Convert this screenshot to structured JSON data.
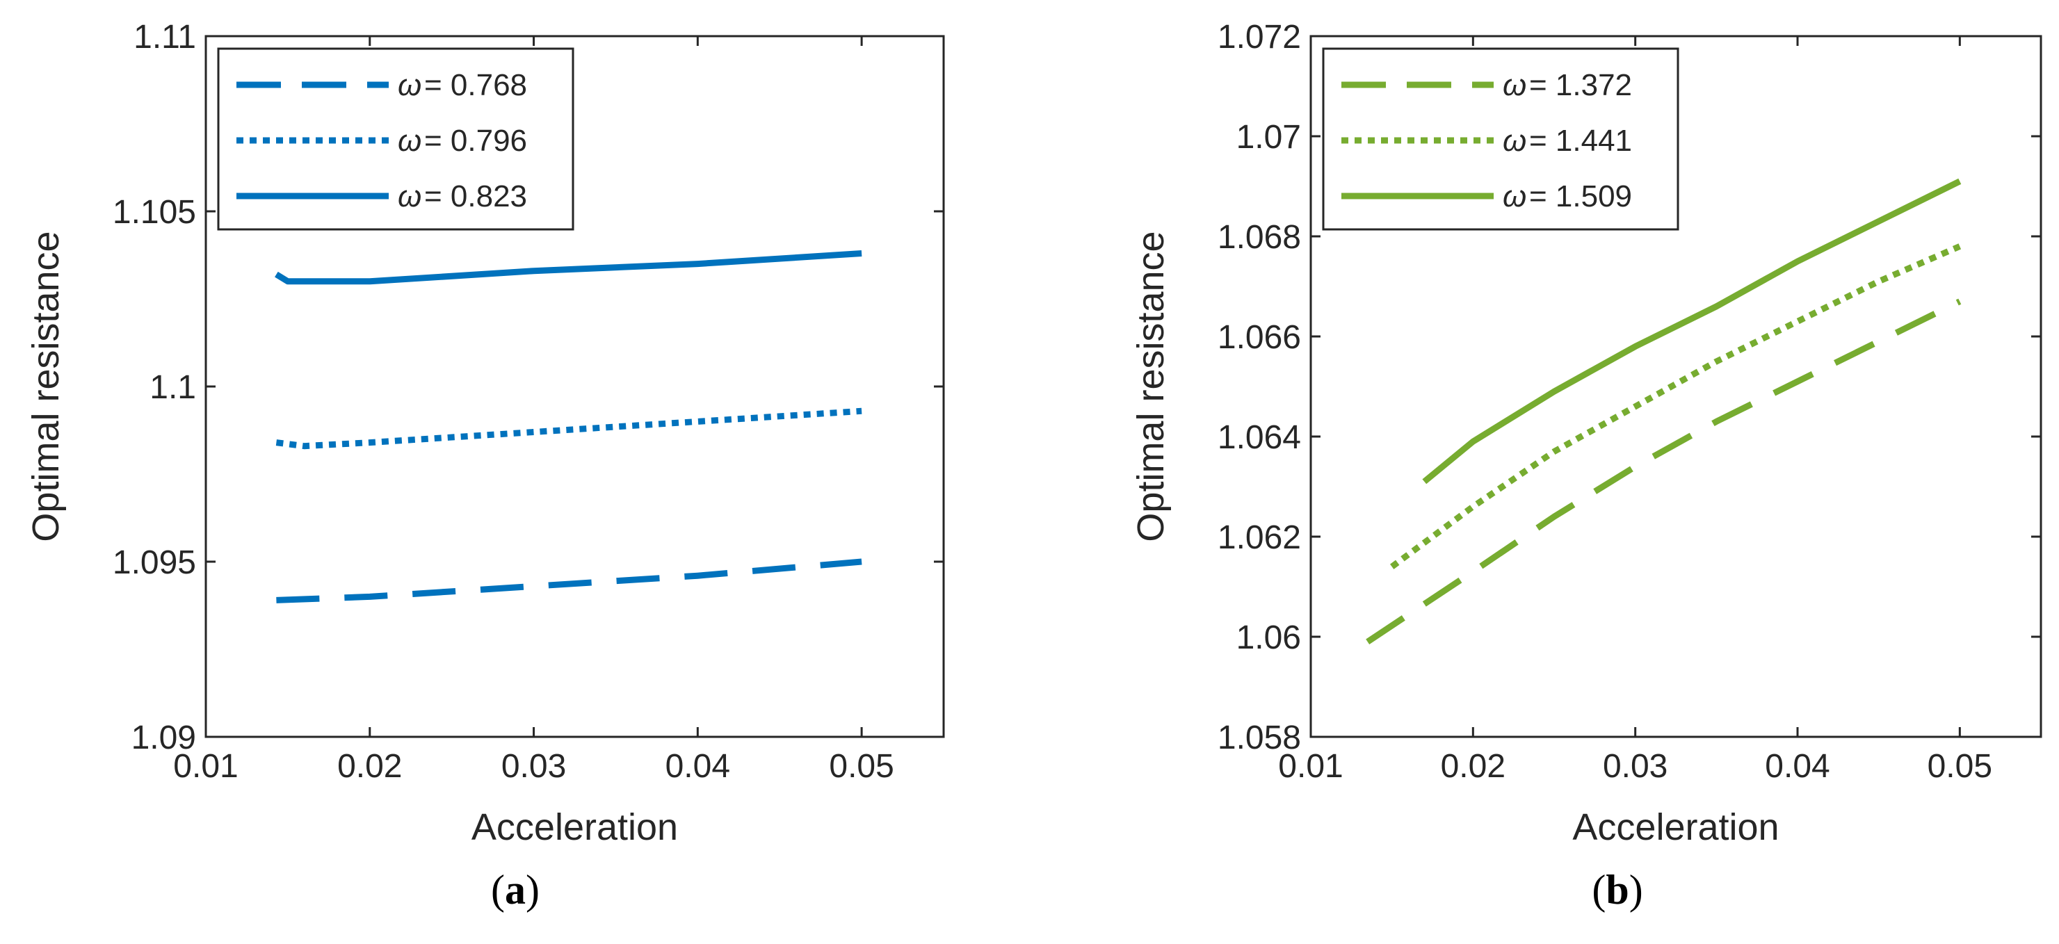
{
  "chart_data": [
    {
      "type": "line",
      "panel_label": "a",
      "xlabel": "Acceleration",
      "ylabel": "Optimal resistance",
      "xlim": [
        0.01,
        0.055
      ],
      "ylim": [
        1.09,
        1.11
      ],
      "xticks": [
        0.01,
        0.02,
        0.03,
        0.04,
        0.05
      ],
      "xtick_labels": [
        "0.01",
        "0.02",
        "0.03",
        "0.04",
        "0.05"
      ],
      "yticks": [
        1.09,
        1.095,
        1.1,
        1.105,
        1.11
      ],
      "ytick_labels": [
        "1.09",
        "1.095",
        "1.1",
        "1.105",
        "1.11"
      ],
      "color": "#0072BD",
      "legend_position": "top-left",
      "legend_prefix": "ω",
      "series": [
        {
          "name": "ω = 0.768",
          "value_label": "= 0.768",
          "style": "dashed",
          "x": [
            0.0143,
            0.02,
            0.03,
            0.04,
            0.05
          ],
          "y": [
            1.0939,
            1.094,
            1.0943,
            1.0946,
            1.095
          ]
        },
        {
          "name": "ω = 0.796",
          "value_label": "= 0.796",
          "style": "dotted",
          "x": [
            0.0143,
            0.016,
            0.02,
            0.03,
            0.04,
            0.05
          ],
          "y": [
            1.0984,
            1.0983,
            1.0984,
            1.0987,
            1.099,
            1.0993
          ]
        },
        {
          "name": "ω = 0.823",
          "value_label": "= 0.823",
          "style": "solid",
          "x": [
            0.0143,
            0.015,
            0.017,
            0.02,
            0.03,
            0.04,
            0.05
          ],
          "y": [
            1.1032,
            1.103,
            1.103,
            1.103,
            1.1033,
            1.1035,
            1.1038
          ]
        }
      ]
    },
    {
      "type": "line",
      "panel_label": "b",
      "xlabel": "Acceleration",
      "ylabel": "Optimal resistance",
      "xlim": [
        0.01,
        0.055
      ],
      "ylim": [
        1.058,
        1.072
      ],
      "xticks": [
        0.01,
        0.02,
        0.03,
        0.04,
        0.05
      ],
      "xtick_labels": [
        "0.01",
        "0.02",
        "0.03",
        "0.04",
        "0.05"
      ],
      "yticks": [
        1.058,
        1.06,
        1.062,
        1.064,
        1.066,
        1.068,
        1.07,
        1.072
      ],
      "ytick_labels": [
        "1.058",
        "1.06",
        "1.062",
        "1.064",
        "1.066",
        "1.068",
        "1.07",
        "1.072"
      ],
      "color": "#77AC30",
      "legend_position": "top-left",
      "legend_prefix": "ω",
      "series": [
        {
          "name": "ω = 1.372",
          "value_label": "= 1.372",
          "style": "dashed",
          "x": [
            0.0135,
            0.02,
            0.025,
            0.03,
            0.035,
            0.04,
            0.045,
            0.05
          ],
          "y": [
            1.0599,
            1.0613,
            1.0624,
            1.0634,
            1.0643,
            1.0651,
            1.0659,
            1.0667
          ]
        },
        {
          "name": "ω = 1.441",
          "value_label": "= 1.441",
          "style": "dotted",
          "x": [
            0.015,
            0.02,
            0.025,
            0.03,
            0.035,
            0.04,
            0.045,
            0.05
          ],
          "y": [
            1.0614,
            1.0626,
            1.0637,
            1.0646,
            1.0655,
            1.0663,
            1.0671,
            1.0678
          ]
        },
        {
          "name": "ω = 1.509",
          "value_label": "= 1.509",
          "style": "solid",
          "x": [
            0.017,
            0.02,
            0.025,
            0.03,
            0.035,
            0.04,
            0.045,
            0.05
          ],
          "y": [
            1.0631,
            1.0639,
            1.0649,
            1.0658,
            1.0666,
            1.0675,
            1.0683,
            1.0691
          ]
        }
      ]
    }
  ]
}
